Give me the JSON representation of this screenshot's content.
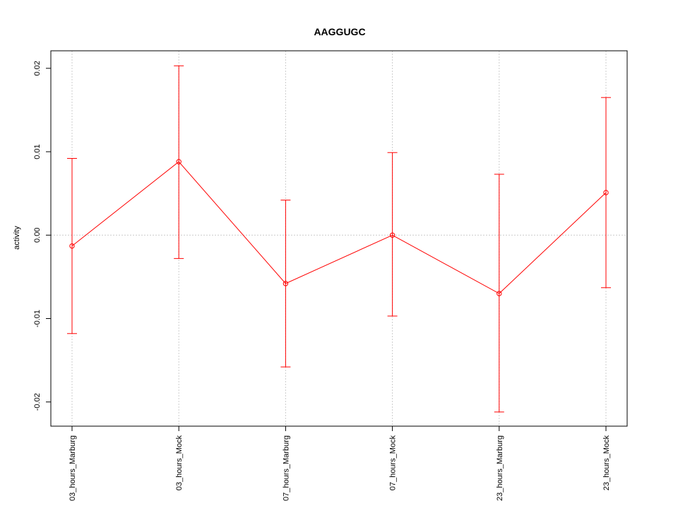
{
  "chart_data": {
    "type": "line",
    "title": "AAGGUGC",
    "xlabel": "",
    "ylabel": "activity",
    "categories": [
      "03_hours_Marburg",
      "03_hours_Mock",
      "07_hours_Marburg",
      "07_hours_Mock",
      "23_hours_Marburg",
      "23_hours_Mock"
    ],
    "series": [
      {
        "values": [
          -0.0013,
          0.0088,
          -0.0058,
          0.0,
          -0.007,
          0.0051
        ],
        "error_low": [
          -0.0118,
          -0.0028,
          -0.0158,
          -0.0097,
          -0.0212,
          -0.0063
        ],
        "error_high": [
          0.0092,
          0.0203,
          0.0042,
          0.0099,
          0.0073,
          0.0165
        ],
        "color": "#ff0000"
      }
    ],
    "yticks": [
      -0.02,
      -0.01,
      0.0,
      0.01,
      0.02
    ],
    "ytick_labels": [
      "-0.02",
      "-0.01",
      "0.00",
      "0.01",
      "0.02"
    ],
    "ylim": [
      -0.0229,
      0.0221
    ],
    "grid": true
  }
}
